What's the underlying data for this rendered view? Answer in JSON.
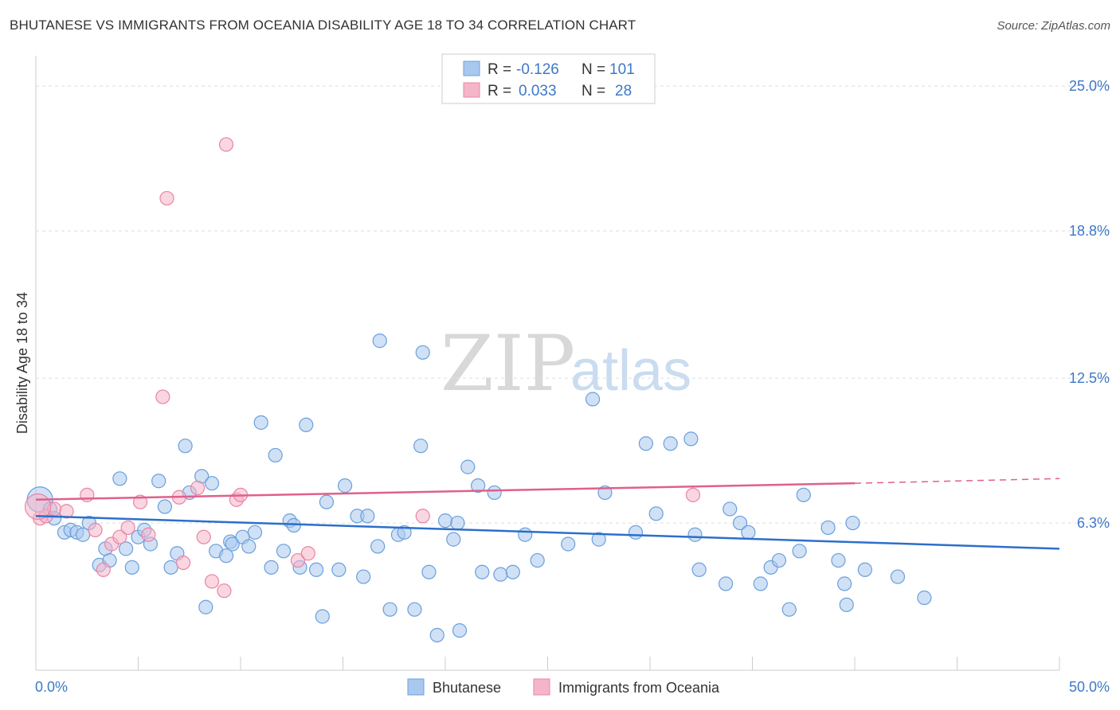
{
  "title": "BHUTANESE VS IMMIGRANTS FROM OCEANIA DISABILITY AGE 18 TO 34 CORRELATION CHART",
  "source": "Source: ZipAtlas.com",
  "watermark": {
    "zip": "ZIP",
    "atlas": "atlas"
  },
  "legend": {
    "rows": [
      {
        "r_label": "R = ",
        "r_value": "-0.126",
        "n_label": "N = ",
        "n_value": "101",
        "color": "#a9c8ee"
      },
      {
        "r_label": "R = ",
        "r_value": "0.033",
        "n_label": "N = ",
        "n_value": "28",
        "color": "#f5b5c8"
      }
    ]
  },
  "chart_data": {
    "type": "scatter",
    "title": "BHUTANESE VS IMMIGRANTS FROM OCEANIA DISABILITY AGE 18 TO 34 CORRELATION CHART",
    "xlabel": "",
    "ylabel": "Disability Age 18 to 34",
    "xlim": [
      0,
      50
    ],
    "ylim": [
      0,
      26.3
    ],
    "x_tick_labels": [
      "0.0%",
      "50.0%"
    ],
    "y_ticks": [
      6.3,
      12.5,
      18.8,
      25.0
    ],
    "y_tick_labels": [
      "6.3%",
      "12.5%",
      "18.8%",
      "25.0%"
    ],
    "grid": true,
    "legend_position": "top-center",
    "series": [
      {
        "name": "Bhutanese",
        "color": "#a9c8ee",
        "stroke": "#6a9fdc",
        "trend": {
          "x": [
            0,
            50
          ],
          "y": [
            6.6,
            5.2
          ],
          "color": "#2c6fcb"
        },
        "points": [
          [
            0.2,
            7.3
          ],
          [
            0.7,
            6.9
          ],
          [
            0.9,
            6.5
          ],
          [
            1.4,
            5.9
          ],
          [
            1.7,
            6.0
          ],
          [
            2.0,
            5.9
          ],
          [
            2.3,
            5.8
          ],
          [
            2.6,
            6.3
          ],
          [
            3.1,
            4.5
          ],
          [
            3.4,
            5.2
          ],
          [
            3.6,
            4.7
          ],
          [
            4.1,
            8.2
          ],
          [
            4.4,
            5.2
          ],
          [
            4.7,
            4.4
          ],
          [
            5.0,
            5.7
          ],
          [
            5.3,
            6.0
          ],
          [
            5.6,
            5.4
          ],
          [
            6.0,
            8.1
          ],
          [
            6.3,
            7.0
          ],
          [
            6.6,
            4.4
          ],
          [
            6.9,
            5.0
          ],
          [
            7.3,
            9.6
          ],
          [
            7.5,
            7.6
          ],
          [
            8.1,
            8.3
          ],
          [
            8.3,
            2.7
          ],
          [
            8.6,
            8.0
          ],
          [
            8.8,
            5.1
          ],
          [
            9.3,
            4.9
          ],
          [
            9.5,
            5.5
          ],
          [
            9.6,
            5.4
          ],
          [
            10.1,
            5.7
          ],
          [
            10.4,
            5.3
          ],
          [
            10.7,
            5.9
          ],
          [
            11.0,
            10.6
          ],
          [
            11.5,
            4.4
          ],
          [
            11.7,
            9.2
          ],
          [
            12.1,
            5.1
          ],
          [
            12.4,
            6.4
          ],
          [
            12.6,
            6.2
          ],
          [
            12.9,
            4.4
          ],
          [
            13.2,
            10.5
          ],
          [
            13.7,
            4.3
          ],
          [
            14.0,
            2.3
          ],
          [
            14.2,
            7.2
          ],
          [
            14.8,
            4.3
          ],
          [
            15.1,
            7.9
          ],
          [
            15.7,
            6.6
          ],
          [
            16.0,
            4.0
          ],
          [
            16.2,
            6.6
          ],
          [
            16.7,
            5.3
          ],
          [
            16.8,
            14.1
          ],
          [
            17.3,
            2.6
          ],
          [
            17.7,
            5.8
          ],
          [
            18.0,
            5.9
          ],
          [
            18.5,
            2.6
          ],
          [
            18.8,
            9.6
          ],
          [
            18.9,
            13.6
          ],
          [
            19.2,
            4.2
          ],
          [
            19.6,
            1.5
          ],
          [
            20.0,
            6.4
          ],
          [
            20.4,
            5.6
          ],
          [
            20.6,
            6.3
          ],
          [
            20.7,
            1.7
          ],
          [
            21.1,
            8.7
          ],
          [
            21.6,
            7.9
          ],
          [
            21.8,
            4.2
          ],
          [
            22.4,
            7.6
          ],
          [
            22.7,
            4.1
          ],
          [
            23.3,
            4.2
          ],
          [
            23.9,
            5.8
          ],
          [
            24.5,
            4.7
          ],
          [
            26.0,
            5.4
          ],
          [
            27.2,
            11.6
          ],
          [
            27.5,
            5.6
          ],
          [
            27.8,
            7.6
          ],
          [
            29.3,
            5.9
          ],
          [
            29.8,
            9.7
          ],
          [
            30.3,
            6.7
          ],
          [
            31.0,
            9.7
          ],
          [
            32.0,
            9.9
          ],
          [
            32.2,
            5.8
          ],
          [
            32.4,
            4.3
          ],
          [
            33.7,
            3.7
          ],
          [
            33.9,
            6.9
          ],
          [
            34.4,
            6.3
          ],
          [
            34.8,
            5.9
          ],
          [
            35.4,
            3.7
          ],
          [
            35.9,
            4.4
          ],
          [
            36.3,
            4.7
          ],
          [
            36.8,
            2.6
          ],
          [
            37.3,
            5.1
          ],
          [
            37.5,
            7.5
          ],
          [
            38.7,
            6.1
          ],
          [
            39.2,
            4.7
          ],
          [
            39.5,
            3.7
          ],
          [
            39.6,
            2.8
          ],
          [
            39.9,
            6.3
          ],
          [
            40.5,
            4.3
          ],
          [
            42.1,
            4.0
          ],
          [
            43.4,
            3.1
          ]
        ]
      },
      {
        "name": "Immigrants from Oceania",
        "color": "#f5b5c8",
        "stroke": "#e885a5",
        "trend": {
          "x": [
            0,
            40
          ],
          "y": [
            7.3,
            8.0
          ],
          "dash_to_x": 50,
          "dash_to_y": 8.2,
          "color": "#e0608a"
        },
        "points": [
          [
            0.2,
            6.5
          ],
          [
            0.5,
            6.6
          ],
          [
            0.9,
            6.9
          ],
          [
            1.5,
            6.8
          ],
          [
            2.5,
            7.5
          ],
          [
            2.9,
            6.0
          ],
          [
            3.3,
            4.3
          ],
          [
            3.7,
            5.4
          ],
          [
            4.1,
            5.7
          ],
          [
            4.5,
            6.1
          ],
          [
            5.1,
            7.2
          ],
          [
            5.5,
            5.8
          ],
          [
            6.2,
            11.7
          ],
          [
            6.4,
            20.2
          ],
          [
            7.0,
            7.4
          ],
          [
            7.2,
            4.6
          ],
          [
            7.9,
            7.8
          ],
          [
            8.2,
            5.7
          ],
          [
            8.6,
            3.8
          ],
          [
            9.2,
            3.4
          ],
          [
            9.3,
            22.5
          ],
          [
            9.8,
            7.3
          ],
          [
            10.0,
            7.5
          ],
          [
            12.8,
            4.7
          ],
          [
            13.3,
            5.0
          ],
          [
            18.9,
            6.6
          ],
          [
            32.1,
            7.5
          ],
          [
            0.1,
            7.0
          ]
        ]
      }
    ]
  },
  "bottom_legend": [
    {
      "label": "Bhutanese"
    },
    {
      "label": "Immigrants from Oceania"
    }
  ]
}
